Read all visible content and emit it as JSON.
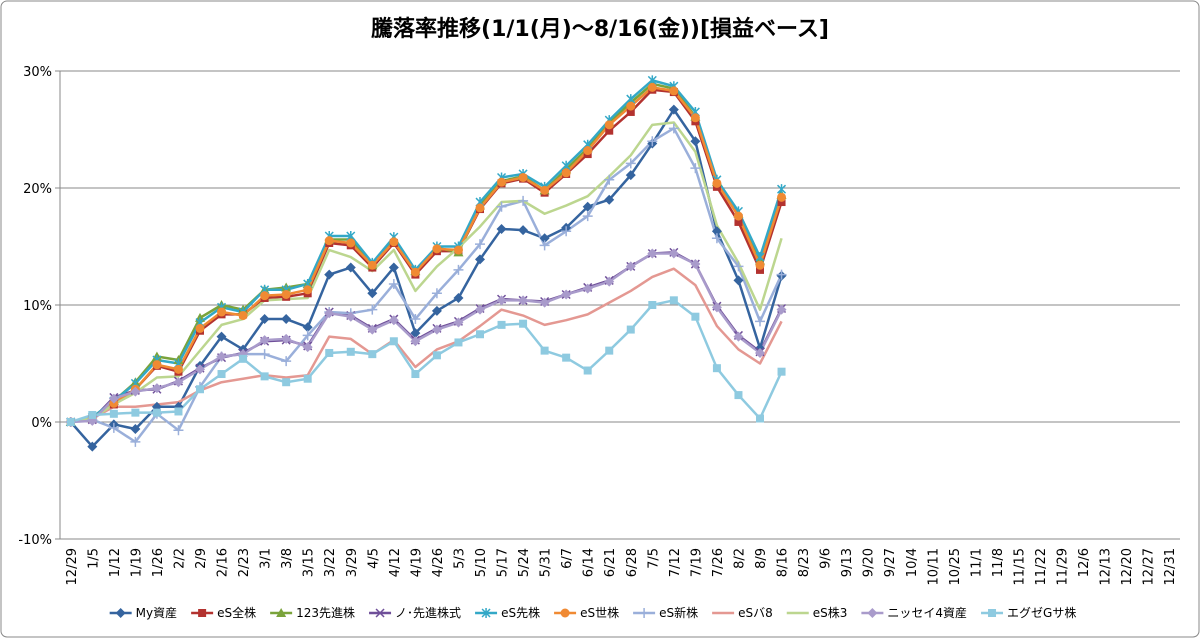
{
  "chart_data": {
    "type": "line",
    "title": "騰落率推移(1/1(月)～8/16(金))[損益ベース]",
    "categories": [
      "12/29",
      "1/5",
      "1/12",
      "1/19",
      "1/26",
      "2/2",
      "2/9",
      "2/16",
      "2/23",
      "3/1",
      "3/8",
      "3/15",
      "3/22",
      "3/29",
      "4/5",
      "4/12",
      "4/19",
      "4/26",
      "5/3",
      "5/10",
      "5/17",
      "5/24",
      "5/31",
      "6/7",
      "6/14",
      "6/21",
      "6/28",
      "7/5",
      "7/12",
      "7/19",
      "7/26",
      "8/2",
      "8/9",
      "8/16",
      "8/23",
      "9/6",
      "9/13",
      "9/20",
      "9/27",
      "10/4",
      "10/11",
      "10/25",
      "11/1",
      "11/8",
      "11/15",
      "11/22",
      "11/29",
      "12/6",
      "12/13",
      "12/20",
      "12/27",
      "12/31"
    ],
    "ylim": [
      -10,
      30
    ],
    "yticks": [
      {
        "value": -10,
        "label": "-10%"
      },
      {
        "value": 0,
        "label": "0%"
      },
      {
        "value": 10,
        "label": "10%"
      },
      {
        "value": 20,
        "label": "20%"
      },
      {
        "value": 30,
        "label": "30%"
      }
    ],
    "grid": true,
    "legend": "bottom",
    "series": [
      {
        "name": "My資産",
        "color": "#35649f",
        "marker": "diamond",
        "values": [
          0,
          -2.1,
          -0.2,
          -0.6,
          1.3,
          1.3,
          4.8,
          7.3,
          6.2,
          8.8,
          8.8,
          8.1,
          12.6,
          13.2,
          11.0,
          13.2,
          7.6,
          9.5,
          10.6,
          13.9,
          16.5,
          16.4,
          15.7,
          16.6,
          18.4,
          19.0,
          21.1,
          23.8,
          26.7,
          24.0,
          16.3,
          12.1,
          6.3,
          12.5,
          null,
          null,
          null,
          null,
          null,
          null,
          null,
          null,
          null,
          null,
          null,
          null,
          null,
          null,
          null,
          null,
          null,
          null
        ]
      },
      {
        "name": "eS全株",
        "color": "#b3322f",
        "marker": "square",
        "values": [
          0,
          0.3,
          1.5,
          2.8,
          4.8,
          4.3,
          7.8,
          9.2,
          9.2,
          10.6,
          10.7,
          11.0,
          15.3,
          15.1,
          13.2,
          15.3,
          12.6,
          14.6,
          14.6,
          18.2,
          20.4,
          20.8,
          19.6,
          21.2,
          22.9,
          24.9,
          26.5,
          28.4,
          28.2,
          25.7,
          20.1,
          17.1,
          13.0,
          18.8,
          null,
          null,
          null,
          null,
          null,
          null,
          null,
          null,
          null,
          null,
          null,
          null,
          null,
          null,
          null,
          null,
          null,
          null
        ]
      },
      {
        "name": "123先進株",
        "color": "#7aa33b",
        "marker": "triangle",
        "values": [
          0,
          0.4,
          1.8,
          3.4,
          5.6,
          5.3,
          8.9,
          10.0,
          9.6,
          11.3,
          11.5,
          11.8,
          15.6,
          15.6,
          13.4,
          15.6,
          12.9,
          14.9,
          14.5,
          18.5,
          20.6,
          21.0,
          19.8,
          21.6,
          23.4,
          25.6,
          27.3,
          28.9,
          28.5,
          26.1,
          20.5,
          17.8,
          13.8,
          19.4,
          null,
          null,
          null,
          null,
          null,
          null,
          null,
          null,
          null,
          null,
          null,
          null,
          null,
          null,
          null,
          null,
          null,
          null
        ]
      },
      {
        "name": "ノ･先進株式",
        "color": "#6f4f99",
        "marker": "x",
        "values": [
          0,
          0.2,
          2.1,
          2.7,
          2.8,
          3.5,
          4.6,
          5.5,
          5.9,
          6.9,
          7.0,
          6.5,
          9.4,
          9.1,
          8.0,
          8.8,
          7.0,
          8.0,
          8.6,
          9.7,
          10.5,
          10.4,
          10.3,
          10.9,
          11.5,
          12.1,
          13.3,
          14.4,
          14.5,
          13.5,
          9.9,
          7.4,
          6.0,
          9.7,
          null,
          null,
          null,
          null,
          null,
          null,
          null,
          null,
          null,
          null,
          null,
          null,
          null,
          null,
          null,
          null,
          null,
          null
        ]
      },
      {
        "name": "eS先株",
        "color": "#33a8c7",
        "marker": "star",
        "values": [
          0,
          0.4,
          1.8,
          3.3,
          5.3,
          5.0,
          8.5,
          9.8,
          9.4,
          11.3,
          11.3,
          11.8,
          15.9,
          15.9,
          13.6,
          15.8,
          13.0,
          15.0,
          15.0,
          18.8,
          20.9,
          21.2,
          20.1,
          21.9,
          23.7,
          25.8,
          27.6,
          29.2,
          28.7,
          26.5,
          20.7,
          18.0,
          14.1,
          19.9,
          null,
          null,
          null,
          null,
          null,
          null,
          null,
          null,
          null,
          null,
          null,
          null,
          null,
          null,
          null,
          null,
          null,
          null
        ]
      },
      {
        "name": "eS世株",
        "color": "#f08a33",
        "marker": "circle",
        "values": [
          0,
          0.3,
          1.6,
          2.8,
          4.9,
          4.5,
          8.0,
          9.4,
          9.1,
          10.8,
          10.9,
          11.3,
          15.5,
          15.3,
          13.4,
          15.4,
          12.8,
          14.8,
          14.7,
          18.3,
          20.5,
          20.9,
          19.8,
          21.3,
          23.2,
          25.4,
          27.0,
          28.6,
          28.3,
          26.0,
          20.4,
          17.6,
          13.4,
          19.2,
          null,
          null,
          null,
          null,
          null,
          null,
          null,
          null,
          null,
          null,
          null,
          null,
          null,
          null,
          null,
          null,
          null,
          null
        ]
      },
      {
        "name": "eS新株",
        "color": "#9aafda",
        "marker": "plus",
        "values": [
          0,
          0.2,
          -0.5,
          -1.7,
          0.7,
          -0.7,
          3.0,
          5.6,
          5.8,
          5.8,
          5.2,
          7.4,
          9.4,
          9.3,
          9.6,
          11.8,
          8.8,
          11.0,
          13.0,
          15.2,
          18.4,
          18.9,
          15.1,
          16.3,
          17.6,
          20.7,
          22.1,
          24.0,
          25.1,
          21.7,
          15.7,
          13.3,
          8.6,
          12.6,
          null,
          null,
          null,
          null,
          null,
          null,
          null,
          null,
          null,
          null,
          null,
          null,
          null,
          null,
          null,
          null,
          null,
          null
        ]
      },
      {
        "name": "eSバ8",
        "color": "#e49892",
        "marker": "none",
        "values": [
          0,
          0.3,
          1.3,
          1.3,
          1.5,
          1.7,
          2.7,
          3.4,
          3.7,
          4.0,
          3.8,
          4.0,
          7.3,
          7.1,
          5.8,
          7.0,
          4.7,
          6.2,
          6.9,
          8.2,
          9.6,
          9.1,
          8.3,
          8.7,
          9.2,
          10.2,
          11.2,
          12.4,
          13.1,
          11.7,
          8.2,
          6.2,
          5.0,
          8.6,
          null,
          null,
          null,
          null,
          null,
          null,
          null,
          null,
          null,
          null,
          null,
          null,
          null,
          null,
          null,
          null,
          null,
          null
        ]
      },
      {
        "name": "eS株3",
        "color": "#bcd68f",
        "marker": "none",
        "values": [
          0,
          0.3,
          1.5,
          2.5,
          3.8,
          3.9,
          6.1,
          8.3,
          8.8,
          10.4,
          10.5,
          10.6,
          14.7,
          14.1,
          12.9,
          14.7,
          11.2,
          13.3,
          14.9,
          16.7,
          18.8,
          18.9,
          17.8,
          18.5,
          19.3,
          21.0,
          22.8,
          25.4,
          25.6,
          23.1,
          16.8,
          13.6,
          9.6,
          15.7,
          null,
          null,
          null,
          null,
          null,
          null,
          null,
          null,
          null,
          null,
          null,
          null,
          null,
          null,
          null,
          null,
          null,
          null
        ]
      },
      {
        "name": "ニッセイ4資産",
        "color": "#a99bcb",
        "marker": "diamond",
        "values": [
          0,
          0.1,
          2.0,
          2.6,
          2.9,
          3.4,
          4.5,
          5.6,
          5.8,
          7.0,
          7.1,
          6.4,
          9.3,
          9.0,
          7.9,
          8.7,
          6.9,
          7.9,
          8.5,
          9.6,
          10.4,
          10.4,
          10.2,
          10.9,
          11.4,
          12.0,
          13.3,
          14.4,
          14.4,
          13.5,
          9.8,
          7.3,
          5.9,
          9.6,
          null,
          null,
          null,
          null,
          null,
          null,
          null,
          null,
          null,
          null,
          null,
          null,
          null,
          null,
          null,
          null,
          null,
          null
        ]
      },
      {
        "name": "エグゼGサ株",
        "color": "#8ecae0",
        "marker": "square",
        "values": [
          0,
          0.6,
          0.7,
          0.8,
          0.8,
          0.9,
          2.8,
          4.1,
          5.4,
          3.9,
          3.4,
          3.7,
          5.9,
          6.0,
          5.8,
          6.9,
          4.1,
          5.7,
          6.8,
          7.5,
          8.3,
          8.4,
          6.1,
          5.5,
          4.4,
          6.1,
          7.9,
          10.0,
          10.4,
          9.0,
          4.6,
          2.3,
          0.3,
          4.3,
          null,
          null,
          null,
          null,
          null,
          null,
          null,
          null,
          null,
          null,
          null,
          null,
          null,
          null,
          null,
          null,
          null,
          null
        ]
      }
    ]
  }
}
